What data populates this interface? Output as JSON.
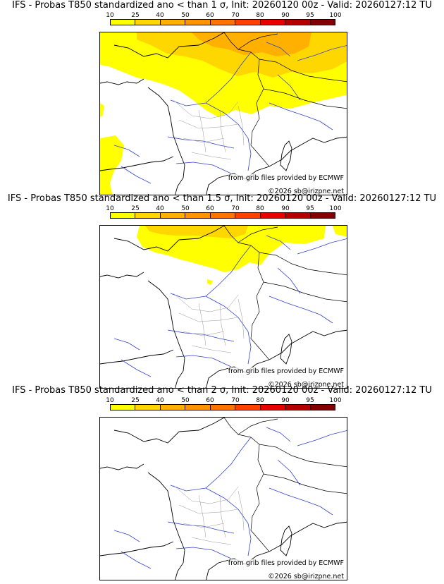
{
  "scale": {
    "labels": [
      "10",
      "25",
      "40",
      "50",
      "60",
      "70",
      "80",
      "90",
      "95",
      "100"
    ],
    "colors": [
      "#ffff00",
      "#ffd700",
      "#ffb000",
      "#ff9400",
      "#ff7400",
      "#ff4000",
      "#e80000",
      "#b40000",
      "#840000",
      "#580000"
    ]
  },
  "panels": [
    {
      "title": "IFS - Probas T850  standardized ano < than 1 σ, Init: 20260120 00z - Valid: 20260127:12 TU",
      "source_credit": "from grib files provided by ECMWF",
      "copyright": "©2026 sb@irizpne.net",
      "fill": {
        "light": "#ffff00",
        "mid": "#ffd700",
        "strong": "#ffb000"
      }
    },
    {
      "title": "IFS - Probas T850  standardized ano < than 1.5 σ, Init: 20260120 00z - Valid: 20260127:12 TU",
      "source_credit": "from grib files provided by ECMWF",
      "copyright": "©2026 sb@irizpne.net",
      "fill": {
        "light": "#ffff00",
        "mid": "#ffd700",
        "strong": "#ffb000"
      }
    },
    {
      "title": "IFS - Probas T850  standardized ano < than 2 σ, Init: 20260120 00z - Valid: 20260127:12 TU",
      "source_credit": "from grib files provided by ECMWF",
      "copyright": "©2026 sb@irizpne.net",
      "fill": {
        "light": "#ffff00",
        "mid": "#ffd700",
        "strong": "#ffb000"
      }
    }
  ]
}
